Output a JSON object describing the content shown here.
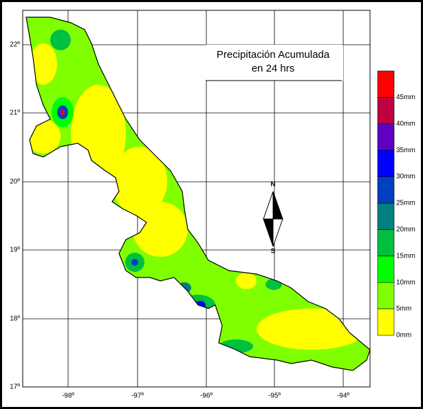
{
  "map": {
    "title": [
      "Precipitación Acumulada",
      "en 24 hrs"
    ],
    "compass": [
      "N",
      "S"
    ],
    "latitude_labels": [
      "22º",
      "21º",
      "20º",
      "19º",
      "18º",
      "17º"
    ],
    "longitude_labels": [
      "-98º",
      "-97º",
      "-96º",
      "-95º",
      "-94º"
    ],
    "legend": {
      "labels": [
        "0mm",
        "5mm",
        "10mm",
        "15mm",
        "20mm",
        "25mm",
        "30mm",
        "35mm",
        "40mm",
        "45mm"
      ],
      "colors": [
        "#ffff00",
        "#80ff00",
        "#00ff00",
        "#00c040",
        "#008080",
        "#0040c0",
        "#0000ff",
        "#6000c0",
        "#c00040",
        "#ff0000"
      ]
    }
  }
}
